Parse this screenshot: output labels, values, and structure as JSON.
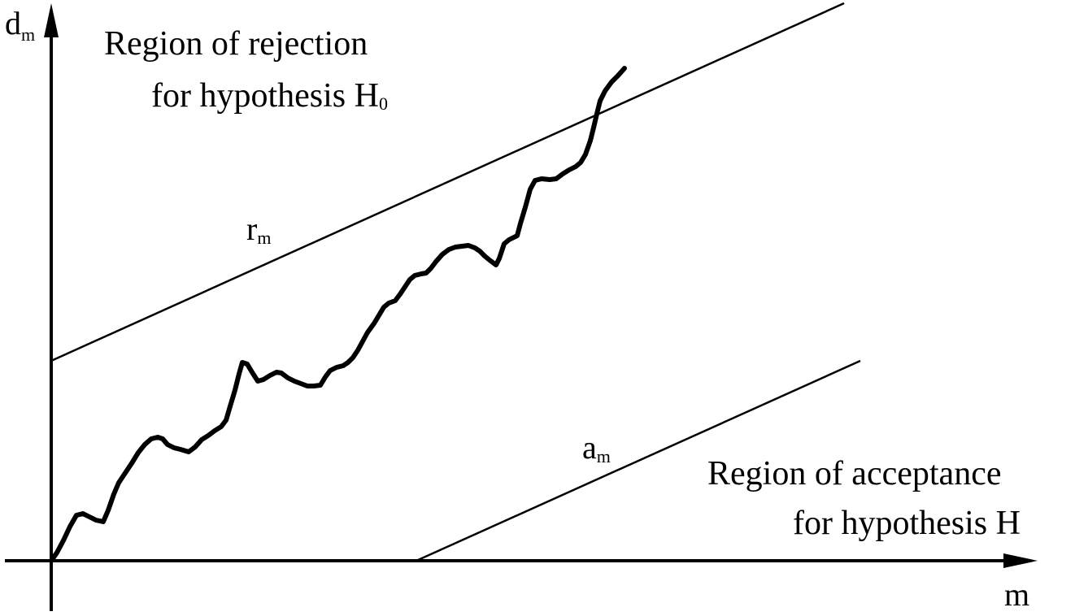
{
  "axes": {
    "y_label": "d",
    "y_label_sub": "m",
    "x_label": "m"
  },
  "rejection_region": {
    "line1": "Region of rejection",
    "line2": "for hypothesis H",
    "line2_sub": "0"
  },
  "acceptance_region": {
    "line1": "Region of acceptance",
    "line2": "for hypothesis H"
  },
  "upper_boundary": {
    "label": "r",
    "label_sub": "m"
  },
  "lower_boundary": {
    "label": "a",
    "label_sub": "m"
  }
}
